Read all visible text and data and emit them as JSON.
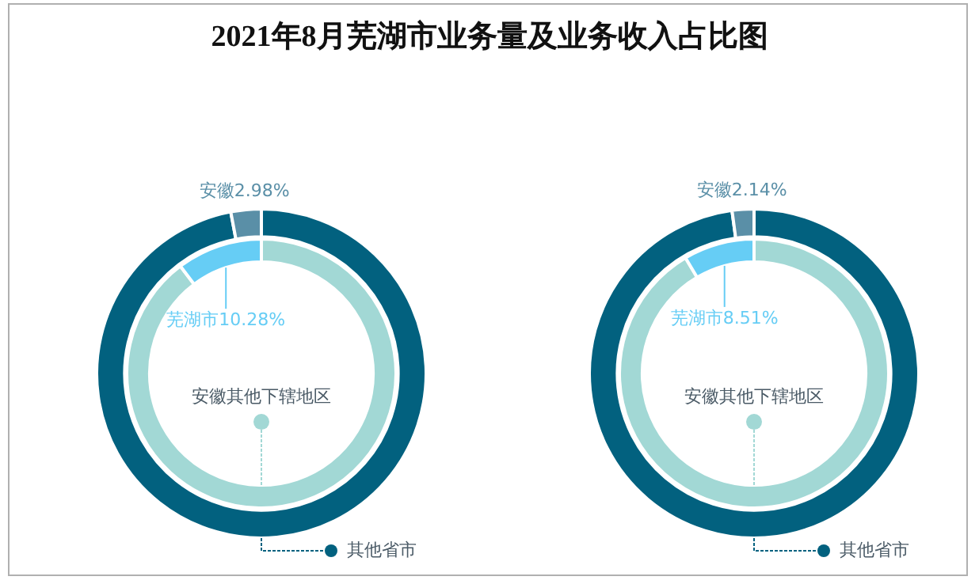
{
  "chart_data": [
    {
      "type": "donut",
      "title": "2021年8月芜湖市业务量及业务收入占比图",
      "categories": [
        "其他省市",
        "安徽"
      ],
      "values": [
        97.02,
        2.98
      ],
      "colors": [
        "#02617f",
        "#5a8fa7"
      ],
      "value_labels": [
        null,
        "2.98%"
      ]
    },
    {
      "type": "donut",
      "categories": [
        "安徽其他下辖地区",
        "芜湖市"
      ],
      "values": [
        89.72,
        10.28
      ],
      "colors": [
        "#a2d8d5",
        "#66cdf5"
      ],
      "value_labels": [
        null,
        "10.28%"
      ]
    },
    {
      "type": "donut",
      "categories": [
        "其他省市",
        "安徽"
      ],
      "values": [
        97.86,
        2.14
      ],
      "colors": [
        "#02617f",
        "#5a8fa7"
      ],
      "value_labels": [
        null,
        "2.14%"
      ]
    },
    {
      "type": "donut",
      "categories": [
        "安徽其他下辖地区",
        "芜湖市"
      ],
      "values": [
        91.49,
        8.51
      ],
      "colors": [
        "#a2d8d5",
        "#66cdf5"
      ],
      "value_labels": [
        null,
        "8.51%"
      ]
    }
  ]
}
